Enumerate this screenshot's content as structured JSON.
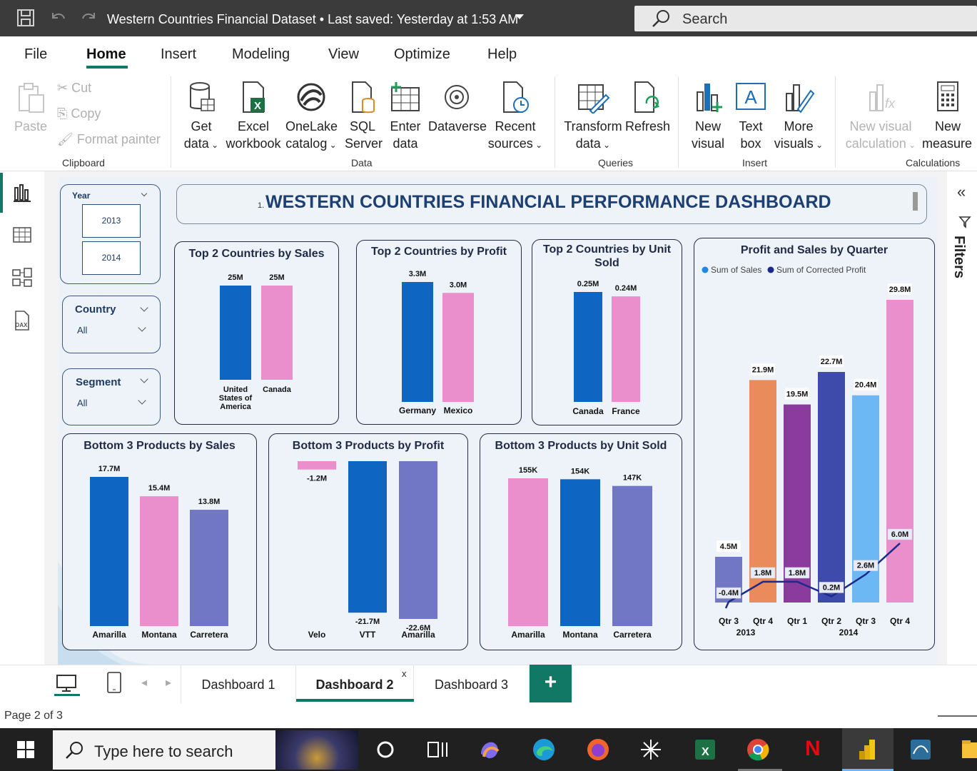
{
  "window": {
    "title": "Western Countries Financial Dataset • Last saved: Yesterday at 1:53 AM",
    "search_placeholder": "Search"
  },
  "menu": {
    "tabs": [
      "File",
      "Home",
      "Insert",
      "Modeling",
      "View",
      "Optimize",
      "Help"
    ],
    "active": "Home"
  },
  "ribbon": {
    "clipboard": {
      "paste": "Paste",
      "cut": "Cut",
      "copy": "Copy",
      "format_painter": "Format painter",
      "group": "Clipboard"
    },
    "data": {
      "get_data": [
        "Get",
        "data"
      ],
      "excel": [
        "Excel",
        "workbook"
      ],
      "onelake": [
        "OneLake",
        "catalog"
      ],
      "sql": [
        "SQL",
        "Server"
      ],
      "enter": [
        "Enter",
        "data"
      ],
      "dataverse": "Dataverse",
      "recent": [
        "Recent",
        "sources"
      ],
      "group": "Data"
    },
    "queries": {
      "transform": [
        "Transform",
        "data"
      ],
      "refresh": "Refresh",
      "group": "Queries"
    },
    "insert": {
      "new_visual": [
        "New",
        "visual"
      ],
      "text_box": [
        "Text",
        "box"
      ],
      "more_visuals": [
        "More",
        "visuals"
      ],
      "group": "Insert"
    },
    "calculations": {
      "new_visual_calc": [
        "New visual",
        "calculation"
      ],
      "new_measure": [
        "New",
        "measure r"
      ],
      "group": "Calculations"
    }
  },
  "filters_pane_label": "Filters",
  "slicers": {
    "year": {
      "label": "Year",
      "options": [
        "2013",
        "2014"
      ]
    },
    "country": {
      "label": "Country",
      "value": "All"
    },
    "segment": {
      "label": "Segment",
      "value": "All"
    }
  },
  "banner": {
    "number": "1.",
    "title": "WESTERN COUNTRIES FINANCIAL PERFORMANCE DASHBOARD"
  },
  "colors": {
    "blue": "#0f66c2",
    "pink": "#ea8fcc",
    "purple": "#7177c4",
    "orange": "#e98b5a",
    "violet": "#8b3a9d",
    "indigo": "#3f4bab",
    "sky": "#6cb8f5",
    "line": "#1b2a8c",
    "accent": "#117865"
  },
  "chart_data": [
    {
      "id": "top2-sales",
      "type": "bar",
      "title": "Top 2 Countries by Sales",
      "categories": [
        "United States of America",
        "Canada"
      ],
      "category_lines": [
        [
          "United",
          "States of",
          "America"
        ],
        [
          "Canada"
        ]
      ],
      "values": [
        25,
        25
      ],
      "labels": [
        "25M",
        "25M"
      ],
      "colors": [
        "#0f66c2",
        "#ea8fcc"
      ]
    },
    {
      "id": "top2-profit",
      "type": "bar",
      "title": "Top 2 Countries by Profit",
      "categories": [
        "Germany",
        "Mexico"
      ],
      "category_lines": [
        [
          "Germany"
        ],
        [
          "Mexico"
        ]
      ],
      "values": [
        3.3,
        3.0
      ],
      "labels": [
        "3.3M",
        "3.0M"
      ],
      "colors": [
        "#0f66c2",
        "#ea8fcc"
      ]
    },
    {
      "id": "top2-units",
      "type": "bar",
      "title": "Top 2 Countries by Unit Sold",
      "categories": [
        "Canada",
        "France"
      ],
      "category_lines": [
        [
          "Canada"
        ],
        [
          "France"
        ]
      ],
      "values": [
        0.25,
        0.24
      ],
      "labels": [
        "0.25M",
        "0.24M"
      ],
      "colors": [
        "#0f66c2",
        "#ea8fcc"
      ]
    },
    {
      "id": "bottom3-sales",
      "type": "bar",
      "title": "Bottom 3 Products by Sales",
      "categories": [
        "Amarilla",
        "Montana",
        "Carretera"
      ],
      "values": [
        17.7,
        15.4,
        13.8
      ],
      "labels": [
        "17.7M",
        "15.4M",
        "13.8M"
      ],
      "colors": [
        "#0f66c2",
        "#ea8fcc",
        "#7177c4"
      ]
    },
    {
      "id": "bottom3-profit",
      "type": "bar",
      "title": "Bottom 3 Products by Profit",
      "categories": [
        "Velo",
        "VTT",
        "Amarilla"
      ],
      "values": [
        -1.2,
        -21.7,
        -22.6
      ],
      "labels": [
        "-1.2M",
        "-21.7M",
        "-22.6M"
      ],
      "colors": [
        "#ea8fcc",
        "#0f66c2",
        "#7177c4"
      ]
    },
    {
      "id": "bottom3-units",
      "type": "bar",
      "title": "Bottom 3 Products by Unit Sold",
      "categories": [
        "Amarilla",
        "Montana",
        "Carretera"
      ],
      "values": [
        155,
        154,
        147
      ],
      "labels": [
        "155K",
        "154K",
        "147K"
      ],
      "colors": [
        "#ea8fcc",
        "#0f66c2",
        "#7177c4"
      ]
    },
    {
      "id": "quarter",
      "type": "bar",
      "title": "Profit and Sales by Quarter",
      "legend": [
        "Sum of  Sales",
        "Sum of Corrected Profit"
      ],
      "legend_colors": [
        "#1e88e5",
        "#1b2a8c"
      ],
      "categories": [
        "Qtr 3",
        "Qtr 4",
        "Qtr 1",
        "Qtr 2",
        "Qtr 3",
        "Qtr 4"
      ],
      "years": [
        {
          "label": "2013",
          "span": [
            0,
            1
          ]
        },
        {
          "label": "2014",
          "span": [
            2,
            5
          ]
        }
      ],
      "series": [
        {
          "name": "Sum of  Sales",
          "values": [
            4.5,
            21.9,
            19.5,
            22.7,
            20.4,
            29.8
          ],
          "labels": [
            "4.5M",
            "21.9M",
            "19.5M",
            "22.7M",
            "20.4M",
            "29.8M"
          ],
          "colors": [
            "#7177c4",
            "#e98b5a",
            "#8b3a9d",
            "#3f4bab",
            "#6cb8f5",
            "#ea8fcc"
          ]
        },
        {
          "name": "Sum of Corrected Profit",
          "values": [
            -0.4,
            1.8,
            1.8,
            0.2,
            2.6,
            6.0
          ],
          "labels": [
            "-0.4M",
            "1.8M",
            "1.8M",
            "0.2M",
            "2.6M",
            "6.0M"
          ]
        }
      ]
    }
  ],
  "page_tabs": [
    "Dashboard 1",
    "Dashboard 2",
    "Dashboard 3"
  ],
  "active_page": "Dashboard 2",
  "close_mark": "x",
  "add_page": "+",
  "status": "Page 2 of 3",
  "taskbar": {
    "search_placeholder": "Type here to search"
  }
}
